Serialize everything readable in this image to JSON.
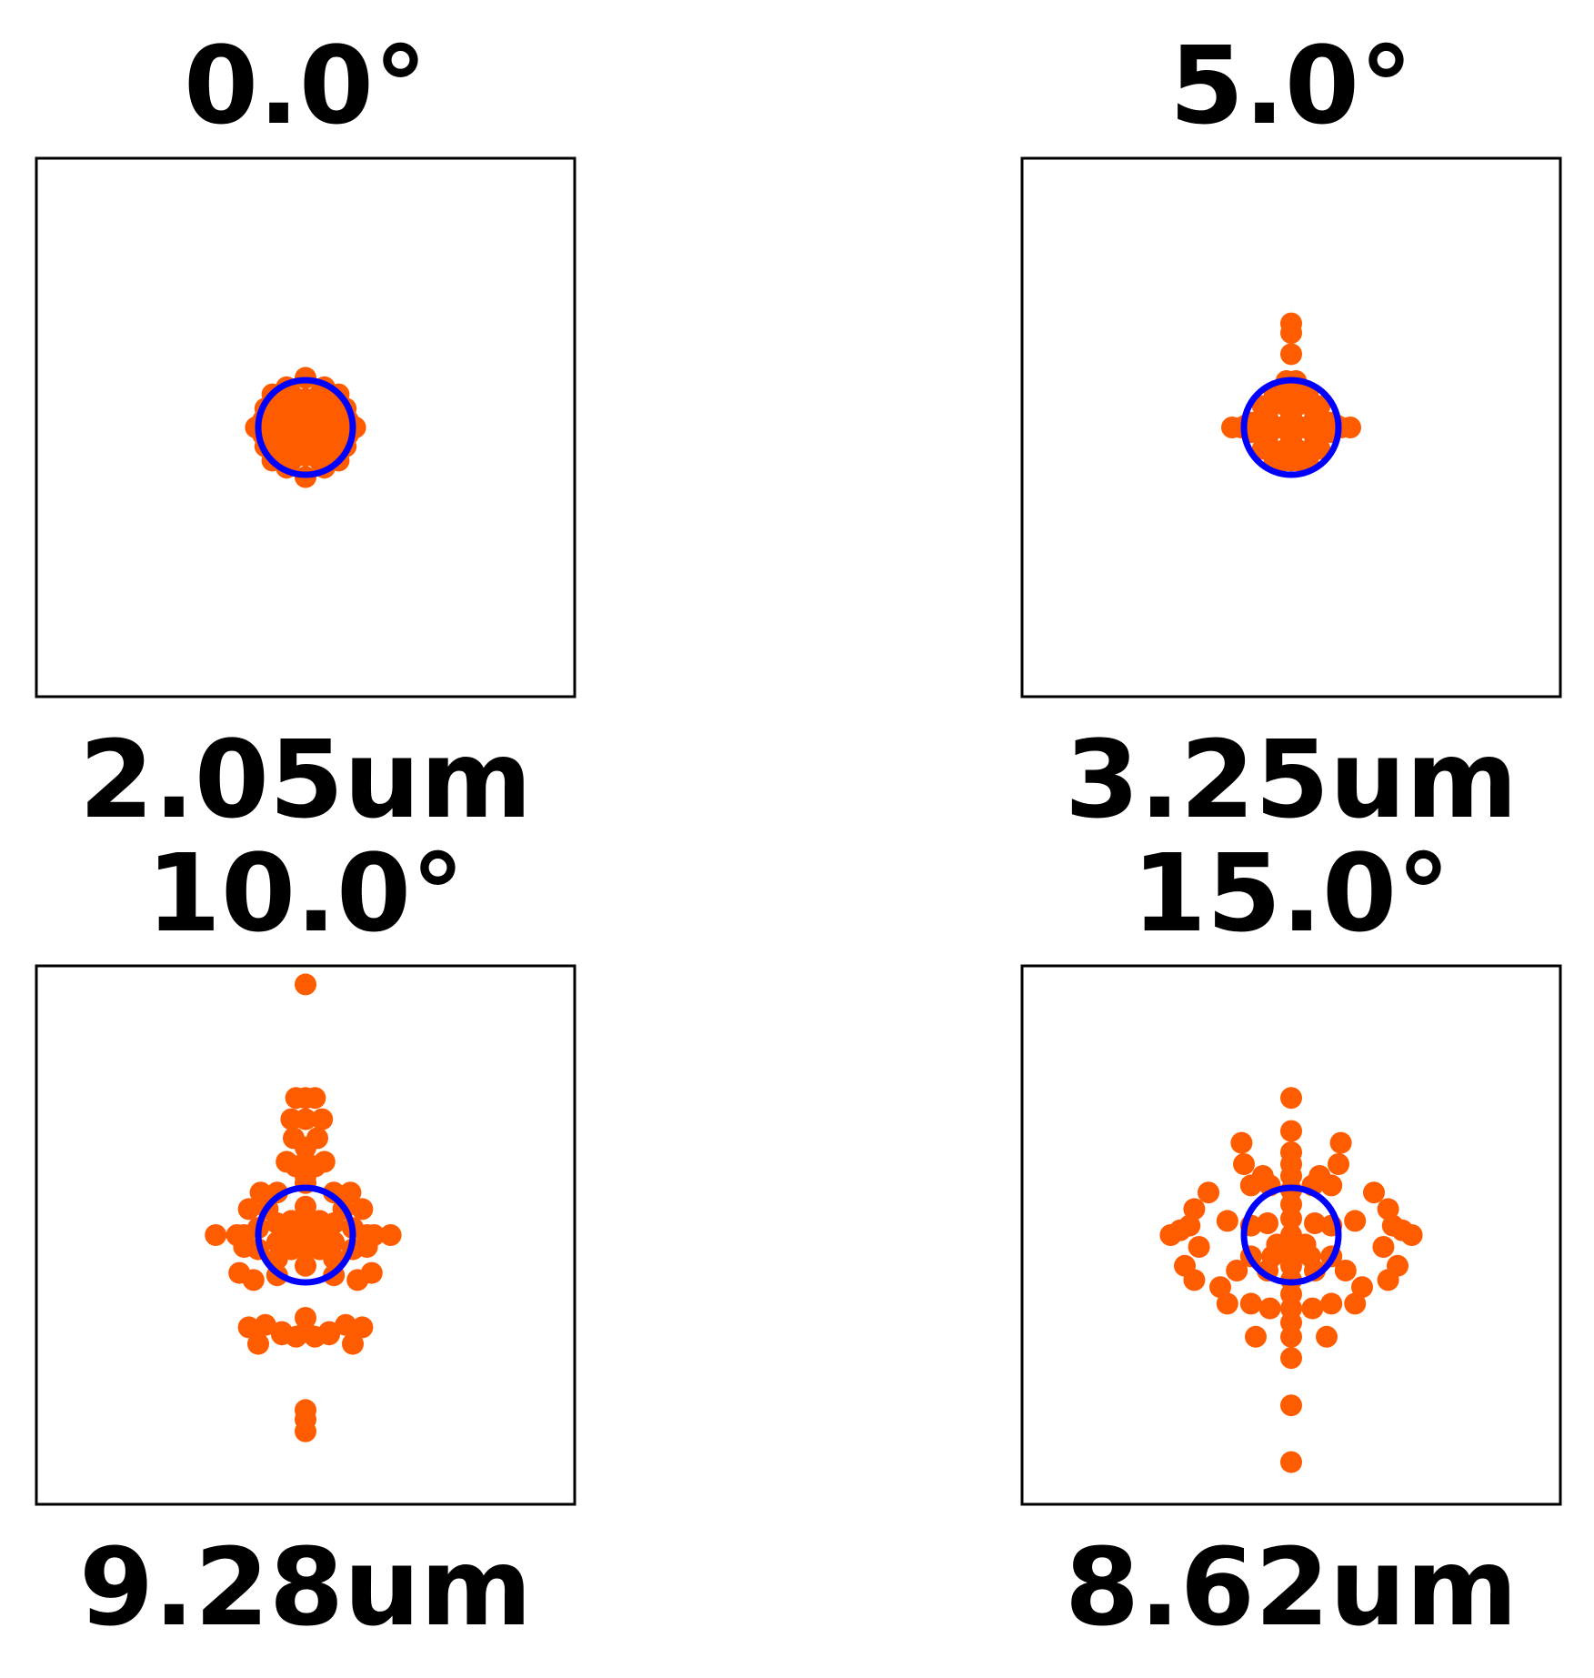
{
  "colors": {
    "spot": "#ff5c00",
    "airy_circle": "#0000ff",
    "frame": "#000000"
  },
  "chart_data": [
    {
      "type": "scatter",
      "title": "0.0°",
      "xlabel": "2.05um",
      "airy_radius": 1,
      "points": [
        [
          0,
          0
        ],
        [
          0.18,
          0.1
        ],
        [
          -0.18,
          0.1
        ],
        [
          0.1,
          -0.18
        ],
        [
          -0.1,
          -0.18
        ],
        [
          0.3,
          0
        ],
        [
          -0.3,
          0
        ],
        [
          0,
          0.3
        ],
        [
          0,
          -0.3
        ],
        [
          0.45,
          0.2
        ],
        [
          -0.45,
          0.2
        ],
        [
          0.45,
          -0.2
        ],
        [
          -0.45,
          -0.2
        ],
        [
          0.2,
          0.45
        ],
        [
          -0.2,
          0.45
        ],
        [
          0.2,
          -0.45
        ],
        [
          -0.2,
          -0.45
        ],
        [
          0.6,
          0
        ],
        [
          -0.6,
          0
        ],
        [
          0,
          0.6
        ],
        [
          0,
          -0.6
        ],
        [
          0.7,
          0.3
        ],
        [
          -0.7,
          0.3
        ],
        [
          0.7,
          -0.3
        ],
        [
          -0.7,
          -0.3
        ],
        [
          0.3,
          0.7
        ],
        [
          -0.3,
          0.7
        ],
        [
          0.3,
          -0.7
        ],
        [
          -0.3,
          -0.7
        ],
        [
          1.05,
          0
        ],
        [
          -1.05,
          0
        ],
        [
          0,
          1.05
        ],
        [
          0,
          -1.05
        ],
        [
          0.7,
          0.7
        ],
        [
          -0.7,
          0.7
        ],
        [
          0.7,
          -0.7
        ],
        [
          -0.7,
          -0.7
        ],
        [
          0.85,
          0.4
        ],
        [
          -0.85,
          0.4
        ],
        [
          0.85,
          -0.4
        ],
        [
          -0.85,
          -0.4
        ],
        [
          0.4,
          0.85
        ],
        [
          -0.4,
          0.85
        ],
        [
          0.4,
          -0.85
        ],
        [
          -0.4,
          -0.85
        ],
        [
          0.55,
          0.55
        ],
        [
          -0.55,
          0.55
        ],
        [
          0.55,
          -0.55
        ],
        [
          -0.55,
          -0.55
        ],
        [
          0.9,
          0.15
        ],
        [
          -0.9,
          0.15
        ],
        [
          0.9,
          -0.15
        ],
        [
          -0.9,
          -0.15
        ]
      ]
    },
    {
      "type": "scatter",
      "title": "5.0°",
      "xlabel": "3.25um",
      "airy_radius": 1,
      "points": [
        [
          0,
          0
        ],
        [
          0.25,
          0
        ],
        [
          -0.25,
          0
        ],
        [
          0,
          0.25
        ],
        [
          0,
          -0.25
        ],
        [
          0.5,
          0.2
        ],
        [
          -0.5,
          0.2
        ],
        [
          0.5,
          -0.2
        ],
        [
          -0.5,
          -0.2
        ],
        [
          0.2,
          0.5
        ],
        [
          -0.2,
          0.5
        ],
        [
          0.2,
          -0.5
        ],
        [
          -0.2,
          -0.5
        ],
        [
          0.7,
          0
        ],
        [
          -0.7,
          0
        ],
        [
          0,
          0.7
        ],
        [
          0,
          -0.7
        ],
        [
          0.6,
          0.45
        ],
        [
          -0.6,
          0.45
        ],
        [
          0.6,
          -0.45
        ],
        [
          -0.6,
          -0.45
        ],
        [
          0.35,
          0.7
        ],
        [
          -0.35,
          0.7
        ],
        [
          0.35,
          -0.7
        ],
        [
          -0.35,
          -0.7
        ],
        [
          0.85,
          0.1
        ],
        [
          -0.85,
          0.1
        ],
        [
          0.85,
          -0.1
        ],
        [
          -0.85,
          -0.1
        ],
        [
          0.15,
          0.85
        ],
        [
          -0.15,
          0.85
        ],
        [
          0.15,
          -0.7
        ],
        [
          -0.15,
          -0.7
        ],
        [
          0.1,
          0.98
        ],
        [
          -0.1,
          0.98
        ],
        [
          1.05,
          0
        ],
        [
          -1.05,
          0
        ],
        [
          1.25,
          0
        ],
        [
          -1.25,
          0
        ],
        [
          0.95,
          0.05
        ],
        [
          -0.95,
          0.05
        ],
        [
          0,
          1.55
        ],
        [
          0,
          2.0
        ],
        [
          0,
          2.2
        ]
      ]
    },
    {
      "type": "scatter",
      "title": "10.0°",
      "xlabel": "9.28um",
      "airy_radius": 1,
      "points": [
        [
          0,
          5.3
        ],
        [
          0,
          2.9
        ],
        [
          -0.2,
          2.9
        ],
        [
          0.2,
          2.9
        ],
        [
          0,
          2.45
        ],
        [
          -0.3,
          2.45
        ],
        [
          0.35,
          2.45
        ],
        [
          -0.25,
          2.05
        ],
        [
          0.25,
          2.05
        ],
        [
          0,
          1.85
        ],
        [
          -0.4,
          1.55
        ],
        [
          0.4,
          1.55
        ],
        [
          0,
          1.55
        ],
        [
          -0.2,
          1.45
        ],
        [
          0.2,
          1.45
        ],
        [
          0,
          1.25
        ],
        [
          0,
          1.1
        ],
        [
          -0.95,
          0.9
        ],
        [
          -0.6,
          0.9
        ],
        [
          0.6,
          0.9
        ],
        [
          0.95,
          0.9
        ],
        [
          -1.2,
          0.55
        ],
        [
          -0.8,
          0.55
        ],
        [
          0.8,
          0.55
        ],
        [
          1.2,
          0.55
        ],
        [
          -1.9,
          0
        ],
        [
          -1.45,
          0
        ],
        [
          -1.3,
          0
        ],
        [
          1.3,
          0
        ],
        [
          1.45,
          0
        ],
        [
          1.8,
          0
        ],
        [
          -1.0,
          0.15
        ],
        [
          1.0,
          0.15
        ],
        [
          -0.6,
          0.25
        ],
        [
          0.6,
          0.25
        ],
        [
          -0.6,
          -0.15
        ],
        [
          0.6,
          -0.15
        ],
        [
          -0.6,
          -0.5
        ],
        [
          0.6,
          -0.5
        ],
        [
          -1.3,
          -0.25
        ],
        [
          1.3,
          -0.25
        ],
        [
          -1.0,
          -0.3
        ],
        [
          1.0,
          -0.3
        ],
        [
          0,
          0.6
        ],
        [
          0,
          0.3
        ],
        [
          0,
          0
        ],
        [
          0,
          -0.3
        ],
        [
          0,
          -0.65
        ],
        [
          -0.3,
          0.3
        ],
        [
          0.3,
          0.3
        ],
        [
          -0.3,
          -0.3
        ],
        [
          0.3,
          -0.3
        ],
        [
          -0.3,
          -0.05
        ],
        [
          0.3,
          -0.05
        ],
        [
          -1.4,
          -0.8
        ],
        [
          1.4,
          -0.8
        ],
        [
          -1.1,
          -0.95
        ],
        [
          1.1,
          -0.95
        ],
        [
          -0.6,
          -0.85
        ],
        [
          0.6,
          -0.85
        ],
        [
          -1.2,
          -1.95
        ],
        [
          1.2,
          -1.95
        ],
        [
          -0.85,
          -1.9
        ],
        [
          0.85,
          -1.9
        ],
        [
          -0.5,
          -2.1
        ],
        [
          0.5,
          -2.1
        ],
        [
          -1.0,
          -2.3
        ],
        [
          1.0,
          -2.3
        ],
        [
          -0.5,
          -2.05
        ],
        [
          0.5,
          -2.05
        ],
        [
          0,
          -1.75
        ],
        [
          0,
          -2.05
        ],
        [
          -0.2,
          -2.15
        ],
        [
          0.2,
          -2.15
        ],
        [
          0,
          -3.7
        ],
        [
          0,
          -3.9
        ],
        [
          0,
          -4.15
        ]
      ]
    },
    {
      "type": "scatter",
      "title": "15.0°",
      "xlabel": "8.62um",
      "airy_radius": 1,
      "points": [
        [
          0,
          2.9
        ],
        [
          0,
          2.2
        ],
        [
          0,
          1.75
        ],
        [
          0,
          1.5
        ],
        [
          0,
          1.25
        ],
        [
          0,
          0.95
        ],
        [
          0,
          0.65
        ],
        [
          0,
          0.35
        ],
        [
          0,
          0
        ],
        [
          0,
          -0.35
        ],
        [
          0,
          -0.65
        ],
        [
          0,
          -0.95
        ],
        [
          0,
          -1.25
        ],
        [
          0,
          -1.55
        ],
        [
          0,
          -1.85
        ],
        [
          0,
          -2.15
        ],
        [
          0,
          -2.6
        ],
        [
          0,
          -3.6
        ],
        [
          0,
          -4.8
        ],
        [
          -1.05,
          1.95
        ],
        [
          1.05,
          1.95
        ],
        [
          -1.0,
          1.5
        ],
        [
          1.0,
          1.5
        ],
        [
          -0.6,
          1.25
        ],
        [
          0.6,
          1.25
        ],
        [
          -0.45,
          1.05
        ],
        [
          0.45,
          1.05
        ],
        [
          -0.85,
          1.05
        ],
        [
          0.85,
          1.05
        ],
        [
          -1.75,
          0.9
        ],
        [
          1.75,
          0.9
        ],
        [
          -2.05,
          0.55
        ],
        [
          2.05,
          0.55
        ],
        [
          -2.15,
          0.2
        ],
        [
          2.15,
          0.2
        ],
        [
          -2.35,
          0.1
        ],
        [
          2.35,
          0.1
        ],
        [
          -2.55,
          0
        ],
        [
          2.55,
          0
        ],
        [
          -1.35,
          0.3
        ],
        [
          1.35,
          0.3
        ],
        [
          -0.5,
          0.25
        ],
        [
          0.5,
          0.25
        ],
        [
          -0.85,
          0.2
        ],
        [
          0.85,
          0.2
        ],
        [
          -0.3,
          -0.2
        ],
        [
          0.3,
          -0.2
        ],
        [
          -0.4,
          -0.45
        ],
        [
          0.4,
          -0.45
        ],
        [
          -0.85,
          -0.45
        ],
        [
          0.85,
          -0.45
        ],
        [
          -0.5,
          -0.75
        ],
        [
          0.5,
          -0.75
        ],
        [
          -1.15,
          -0.75
        ],
        [
          1.15,
          -0.75
        ],
        [
          -1.95,
          -0.25
        ],
        [
          1.95,
          -0.25
        ],
        [
          -2.25,
          -0.65
        ],
        [
          2.25,
          -0.65
        ],
        [
          -2.05,
          -0.95
        ],
        [
          2.05,
          -0.95
        ],
        [
          -1.5,
          -1.1
        ],
        [
          1.5,
          -1.1
        ],
        [
          -1.35,
          -1.45
        ],
        [
          1.35,
          -1.45
        ],
        [
          -0.85,
          -1.45
        ],
        [
          0.85,
          -1.45
        ],
        [
          -0.45,
          -1.55
        ],
        [
          0.45,
          -1.55
        ],
        [
          -0.75,
          -2.15
        ],
        [
          0.75,
          -2.15
        ]
      ]
    }
  ]
}
